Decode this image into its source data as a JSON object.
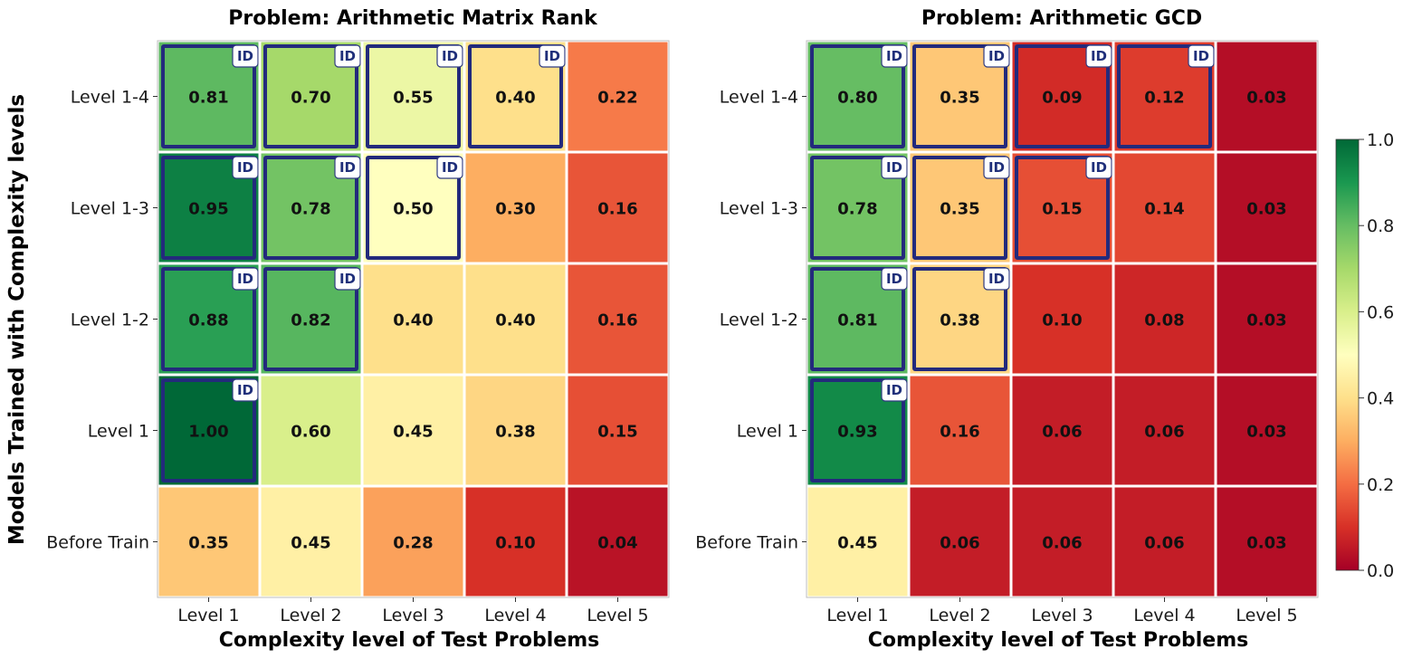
{
  "chart_data": [
    {
      "type": "heatmap",
      "title": "Problem: Arithmetic Matrix Rank",
      "xlabel": "Complexity level of Test Problems",
      "ylabel": "Models Trained with Complexity levels",
      "x_categories": [
        "Level 1",
        "Level 2",
        "Level 3",
        "Level 4",
        "Level 5"
      ],
      "y_categories": [
        "Level 1-4",
        "Level 1-3",
        "Level 1-2",
        "Level 1",
        "Before Train"
      ],
      "values": [
        [
          0.81,
          0.7,
          0.55,
          0.4,
          0.22
        ],
        [
          0.95,
          0.78,
          0.5,
          0.3,
          0.16
        ],
        [
          0.88,
          0.82,
          0.4,
          0.4,
          0.16
        ],
        [
          1.0,
          0.6,
          0.45,
          0.38,
          0.15
        ],
        [
          0.35,
          0.45,
          0.28,
          0.1,
          0.04
        ]
      ],
      "in_distribution": [
        [
          true,
          true,
          true,
          true,
          false
        ],
        [
          true,
          true,
          true,
          false,
          false
        ],
        [
          true,
          true,
          false,
          false,
          false
        ],
        [
          true,
          false,
          false,
          false,
          false
        ],
        [
          false,
          false,
          false,
          false,
          false
        ]
      ],
      "badge_label": "ID"
    },
    {
      "type": "heatmap",
      "title": "Problem: Arithmetic GCD",
      "xlabel": "Complexity level of Test Problems",
      "ylabel": "",
      "x_categories": [
        "Level 1",
        "Level 2",
        "Level 3",
        "Level 4",
        "Level 5"
      ],
      "y_categories": [
        "Level 1-4",
        "Level 1-3",
        "Level 1-2",
        "Level 1",
        "Before Train"
      ],
      "values": [
        [
          0.8,
          0.35,
          0.09,
          0.12,
          0.03
        ],
        [
          0.78,
          0.35,
          0.15,
          0.14,
          0.03
        ],
        [
          0.81,
          0.38,
          0.1,
          0.08,
          0.03
        ],
        [
          0.93,
          0.16,
          0.06,
          0.06,
          0.03
        ],
        [
          0.45,
          0.06,
          0.06,
          0.06,
          0.03
        ]
      ],
      "in_distribution": [
        [
          true,
          true,
          true,
          true,
          false
        ],
        [
          true,
          true,
          true,
          false,
          false
        ],
        [
          true,
          true,
          false,
          false,
          false
        ],
        [
          true,
          false,
          false,
          false,
          false
        ],
        [
          false,
          false,
          false,
          false,
          false
        ]
      ],
      "badge_label": "ID"
    }
  ],
  "colorbar": {
    "colormap": "RdYlGn",
    "range": [
      0.0,
      1.0
    ],
    "ticks": [
      "0.0",
      "0.2",
      "0.4",
      "0.6",
      "0.8",
      "1.0"
    ]
  },
  "colors": {
    "id_border": "#232a7c",
    "cell_gap": "#ffffff",
    "badge_fill": "#ffffff",
    "badge_text": "#1f2f7a"
  }
}
